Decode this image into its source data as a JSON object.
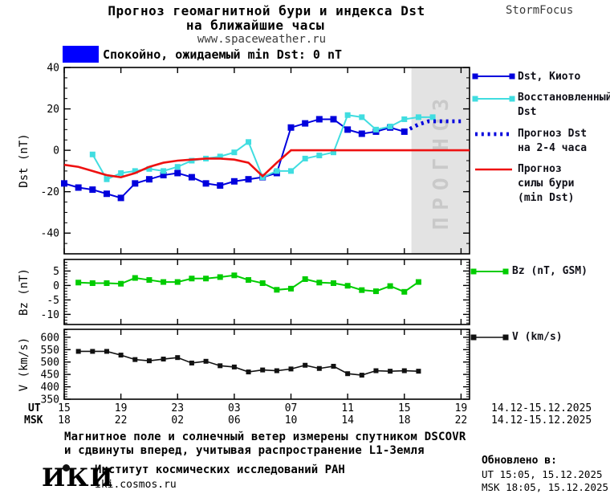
{
  "header": {
    "title_line1": "Прогноз геомагнитной бури и индекса Dst",
    "title_line2": "на ближайшие часы",
    "site": "www.spaceweather.ru",
    "brand": "StormFocus"
  },
  "status": {
    "swatch_color": "#0000ff",
    "text": "Спокойно, ожидаемый min Dst: 0 nT"
  },
  "legend": {
    "kyoto": "Dst, Киото",
    "restored_1": "Восстановленный",
    "restored_2": "Dst",
    "forecast_1": "Прогноз Dst",
    "forecast_2": "на 2-4 часа",
    "storm_1": "Прогноз",
    "storm_2": "силы бури",
    "storm_3": "(min Dst)",
    "bz": "Bz (nT, GSM)",
    "v": "V (km/s)"
  },
  "footer": {
    "note_line1": "Магнитное поле и солнечный ветер измерены спутником DSCOVR",
    "note_line2": "и сдвинуты вперед, учитывая распространение L1-Земля",
    "updated_label": "Обновлено в:",
    "updated_ut": "UT  15:05, 15.12.2025",
    "updated_msk": "MSK 18:05, 15.12.2025",
    "org_logo": "ИКИ",
    "org_name": "Институт космических исследований РАН",
    "org_site": "iki.cosmos.ru"
  },
  "chart_data": {
    "type": "line",
    "xaxis": {
      "lim": [
        0,
        28.6
      ],
      "major_hours": [
        0,
        4,
        8,
        12,
        16,
        20,
        24,
        28
      ],
      "ut_labels": [
        "15",
        "19",
        "23",
        "03",
        "07",
        "11",
        "15",
        "19"
      ],
      "msk_labels": [
        "18",
        "22",
        "02",
        "06",
        "10",
        "14",
        "18",
        "22"
      ],
      "row_labels": {
        "ut": "UT",
        "msk": "MSK"
      },
      "date_range": "14.12-15.12.2025"
    },
    "plots": [
      {
        "id": "dst",
        "ylabel": "Dst (nT)",
        "ylim": [
          -50,
          40
        ],
        "yticks": [
          40,
          20,
          0,
          -20,
          -40
        ],
        "minor_step": 5,
        "forecast_band": {
          "start_hour": 24.5,
          "label": "ПРОГНОЗ",
          "band_color": "#e3e3e3",
          "label_color": "#c9c9c9"
        },
        "series": [
          {
            "name": "Dst, Киото",
            "color": "#0000dd",
            "marker": "square",
            "marker_size": 8,
            "width": 2,
            "x": [
              0,
              1,
              2,
              3,
              4,
              5,
              6,
              7,
              8,
              9,
              10,
              11,
              12,
              13,
              14,
              15,
              16,
              17,
              18,
              19,
              20,
              21,
              22,
              23,
              24
            ],
            "y": [
              -16,
              -18,
              -19,
              -21,
              -23,
              -16,
              -14,
              -12,
              -11,
              -13,
              -16,
              -17,
              -15,
              -14,
              -13,
              -11,
              11,
              13,
              15,
              15,
              10,
              8,
              9,
              11,
              9
            ]
          },
          {
            "name": "Восстановленный Dst",
            "color": "#40dde0",
            "marker": "square",
            "marker_size": 7,
            "width": 2,
            "x": [
              2,
              3,
              4,
              5,
              6,
              7,
              8,
              9,
              10,
              11,
              12,
              13,
              14,
              15,
              16,
              17,
              18,
              19,
              20,
              21,
              22,
              23,
              24,
              25,
              26
            ],
            "y": [
              -2,
              -14,
              -11,
              -10,
              -9,
              -10,
              -8,
              -5,
              -4,
              -3,
              -1,
              4,
              -13,
              -10,
              -10,
              -4,
              -2.5,
              -1,
              17,
              16,
              10,
              11.5,
              15,
              16,
              16
            ]
          },
          {
            "name": "Прогноз Dst на 2-4 часа",
            "color": "#0000dd",
            "style": "dotted",
            "x": [
              24,
              25,
              25.7,
              28
            ],
            "y": [
              9,
              12.5,
              14,
              14
            ]
          },
          {
            "name": "Прогноз силы бури (min Dst)",
            "color": "#ee1111",
            "width": 2.6,
            "x": [
              0,
              1,
              2,
              3,
              4,
              5,
              6,
              7,
              8,
              9,
              10,
              11,
              12,
              13,
              14,
              15,
              16,
              28.6
            ],
            "y": [
              -7,
              -8,
              -10,
              -12,
              -13,
              -11,
              -8,
              -6,
              -5,
              -4.5,
              -4,
              -4,
              -4.5,
              -6,
              -12.5,
              -6,
              0,
              0
            ]
          }
        ]
      },
      {
        "id": "bz",
        "ylabel": "Bz (nT)",
        "ylim": [
          -13.5,
          9
        ],
        "yticks": [
          5,
          0,
          -5,
          -10
        ],
        "minor_step": 1,
        "series": [
          {
            "name": "Bz (nT, GSM)",
            "color": "#00cc00",
            "marker": "square",
            "marker_size": 7,
            "width": 2,
            "x": [
              1,
              2,
              3,
              4,
              5,
              6,
              7,
              8,
              9,
              10,
              11,
              12,
              13,
              14,
              15,
              16,
              17,
              18,
              19,
              20,
              21,
              22,
              23,
              24,
              25
            ],
            "y": [
              1,
              0.8,
              0.8,
              0.6,
              2.6,
              1.9,
              1.2,
              1.2,
              2.4,
              2.4,
              2.9,
              3.5,
              1.9,
              0.8,
              -1.5,
              -1.1,
              2.2,
              1,
              0.8,
              -0.1,
              -1.6,
              -2,
              -0.2,
              -2.2,
              1.2
            ]
          }
        ]
      },
      {
        "id": "v",
        "ylabel": "V (km/s)",
        "ylim": [
          350,
          632
        ],
        "yticks": [
          600,
          550,
          500,
          450,
          400,
          350
        ],
        "minor_step": 10,
        "series": [
          {
            "name": "V (km/s)",
            "color": "#111111",
            "marker": "square",
            "marker_size": 6,
            "width": 1.6,
            "x": [
              1,
              2,
              3,
              4,
              5,
              6,
              7,
              8,
              9,
              10,
              11,
              12,
              13,
              14,
              15,
              16,
              17,
              18,
              19,
              20,
              21,
              22,
              23,
              24,
              25
            ],
            "y": [
              543,
              543,
              543,
              528,
              510,
              505,
              512,
              518,
              496,
              503,
              485,
              480,
              460,
              468,
              465,
              472,
              487,
              474,
              483,
              453,
              447,
              465,
              463,
              465,
              463
            ]
          }
        ]
      }
    ]
  }
}
